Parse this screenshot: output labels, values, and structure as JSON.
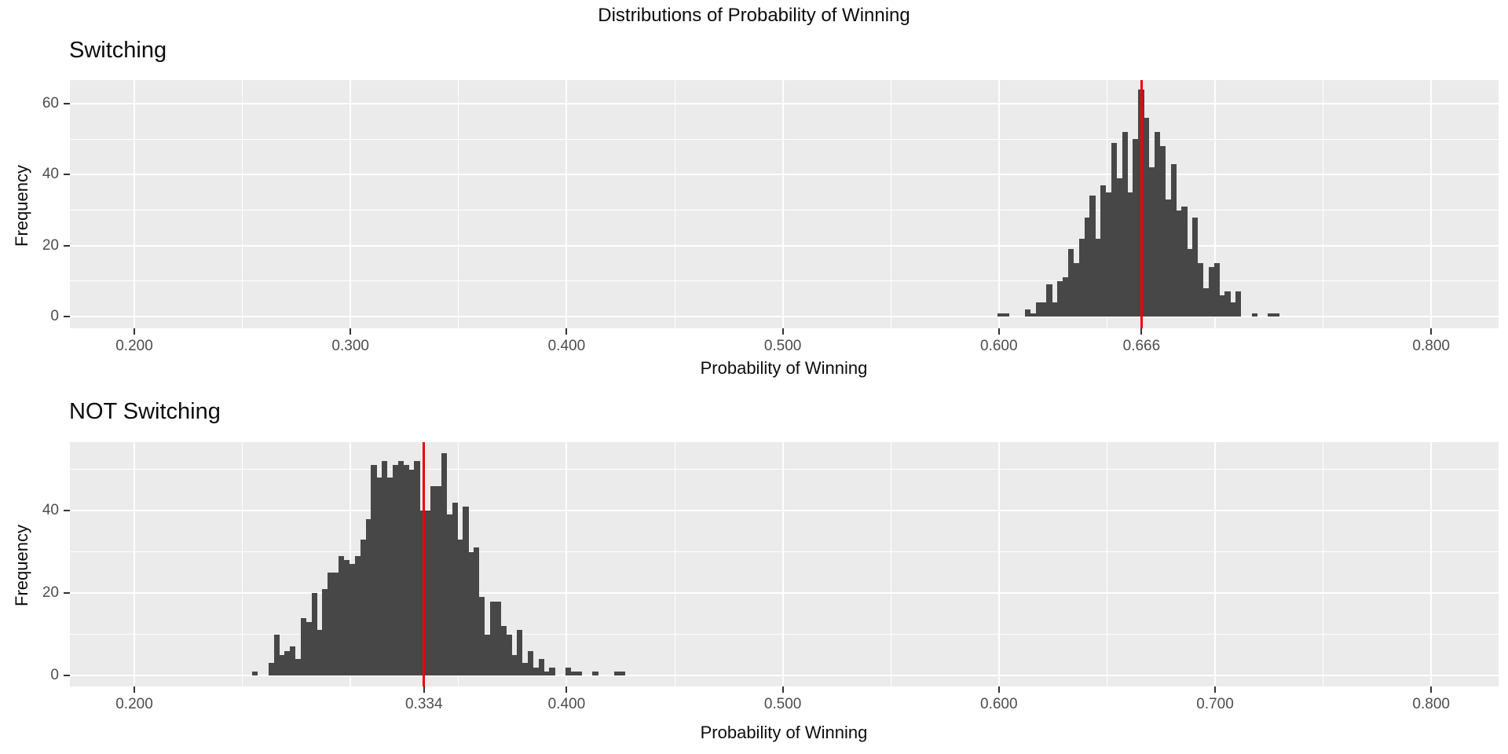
{
  "page_title": "Distributions of Probability of Winning",
  "colors": {
    "bar_fill": "#474747",
    "vline_red": "#EE0000",
    "panel_background": "#EBEBEB",
    "gridline": "#FFFFFF",
    "axis_text": "#4D4D4D",
    "title_text": "#0D0D0D"
  },
  "chart_data": [
    {
      "type": "bar",
      "subtype": "histogram",
      "title": "Switching",
      "xlabel": "Probability of Winning",
      "ylabel": "Frequency",
      "bin_start": 0.5995,
      "bin_width": 0.0025,
      "values": [
        1,
        1,
        0,
        0,
        0,
        2,
        1,
        4,
        4,
        9,
        4,
        10,
        11,
        19,
        15,
        22,
        28,
        34,
        22,
        37,
        35,
        49,
        39,
        52,
        35,
        50,
        64,
        56,
        42,
        52,
        48,
        33,
        43,
        30,
        31,
        19,
        28,
        15,
        8,
        14,
        15,
        6,
        7,
        4,
        7,
        0,
        0,
        1,
        0,
        0,
        1,
        1
      ],
      "vline_x": 0.666,
      "x_ticks": [
        {
          "v": 0.2,
          "label": "0.200"
        },
        {
          "v": 0.3,
          "label": "0.300"
        },
        {
          "v": 0.4,
          "label": "0.400"
        },
        {
          "v": 0.5,
          "label": "0.500"
        },
        {
          "v": 0.6,
          "label": "0.600"
        },
        {
          "v": 0.666,
          "label": "0.666"
        },
        {
          "v": 0.8,
          "label": "0.800"
        }
      ],
      "y_ticks": [
        {
          "v": 0,
          "label": "0"
        },
        {
          "v": 20,
          "label": "20"
        },
        {
          "v": 40,
          "label": "40"
        },
        {
          "v": 60,
          "label": "60"
        }
      ],
      "x_grid_major": [
        0.2,
        0.3,
        0.4,
        0.5,
        0.6,
        0.7,
        0.8
      ],
      "x_grid_minor": [
        0.25,
        0.35,
        0.45,
        0.55,
        0.65,
        0.75
      ],
      "y_grid_major": [
        0,
        20,
        40,
        60
      ],
      "y_grid_minor": [
        10,
        30,
        50
      ],
      "xlim": [
        0.17,
        0.831
      ],
      "ylim": [
        0,
        66.6
      ],
      "grid": true,
      "legend": false
    },
    {
      "type": "bar",
      "subtype": "histogram",
      "title": "NOT Switching",
      "xlabel": "Probability of Winning",
      "ylabel": "Frequency",
      "bin_start": 0.2545,
      "bin_width": 0.0025,
      "values": [
        1,
        0,
        0,
        3,
        10,
        5,
        6,
        7,
        4,
        14,
        13,
        20,
        11,
        21,
        25,
        25,
        29,
        28,
        27,
        29,
        33,
        38,
        51,
        48,
        52,
        48,
        51,
        52,
        51,
        50,
        52,
        40,
        40,
        46,
        46,
        54,
        39,
        42,
        33,
        41,
        30,
        31,
        19,
        10,
        18,
        18,
        12,
        10,
        5,
        11,
        3,
        6,
        2,
        4,
        1,
        2,
        0,
        0,
        2,
        1,
        1,
        0,
        0,
        1,
        0,
        0,
        0,
        1,
        1
      ],
      "vline_x": 0.334,
      "x_ticks": [
        {
          "v": 0.2,
          "label": "0.200"
        },
        {
          "v": 0.334,
          "label": "0.334"
        },
        {
          "v": 0.4,
          "label": "0.400"
        },
        {
          "v": 0.5,
          "label": "0.500"
        },
        {
          "v": 0.6,
          "label": "0.600"
        },
        {
          "v": 0.7,
          "label": "0.700"
        },
        {
          "v": 0.8,
          "label": "0.800"
        }
      ],
      "y_ticks": [
        {
          "v": 0,
          "label": "0"
        },
        {
          "v": 20,
          "label": "20"
        },
        {
          "v": 40,
          "label": "40"
        }
      ],
      "x_grid_major": [
        0.2,
        0.3,
        0.4,
        0.5,
        0.6,
        0.7,
        0.8
      ],
      "x_grid_minor": [
        0.25,
        0.35,
        0.45,
        0.55,
        0.65,
        0.75
      ],
      "y_grid_major": [
        0,
        20,
        40
      ],
      "y_grid_minor": [
        10,
        30,
        50
      ],
      "xlim": [
        0.17,
        0.831
      ],
      "ylim": [
        0,
        56.6
      ],
      "grid": true,
      "legend": false
    }
  ]
}
